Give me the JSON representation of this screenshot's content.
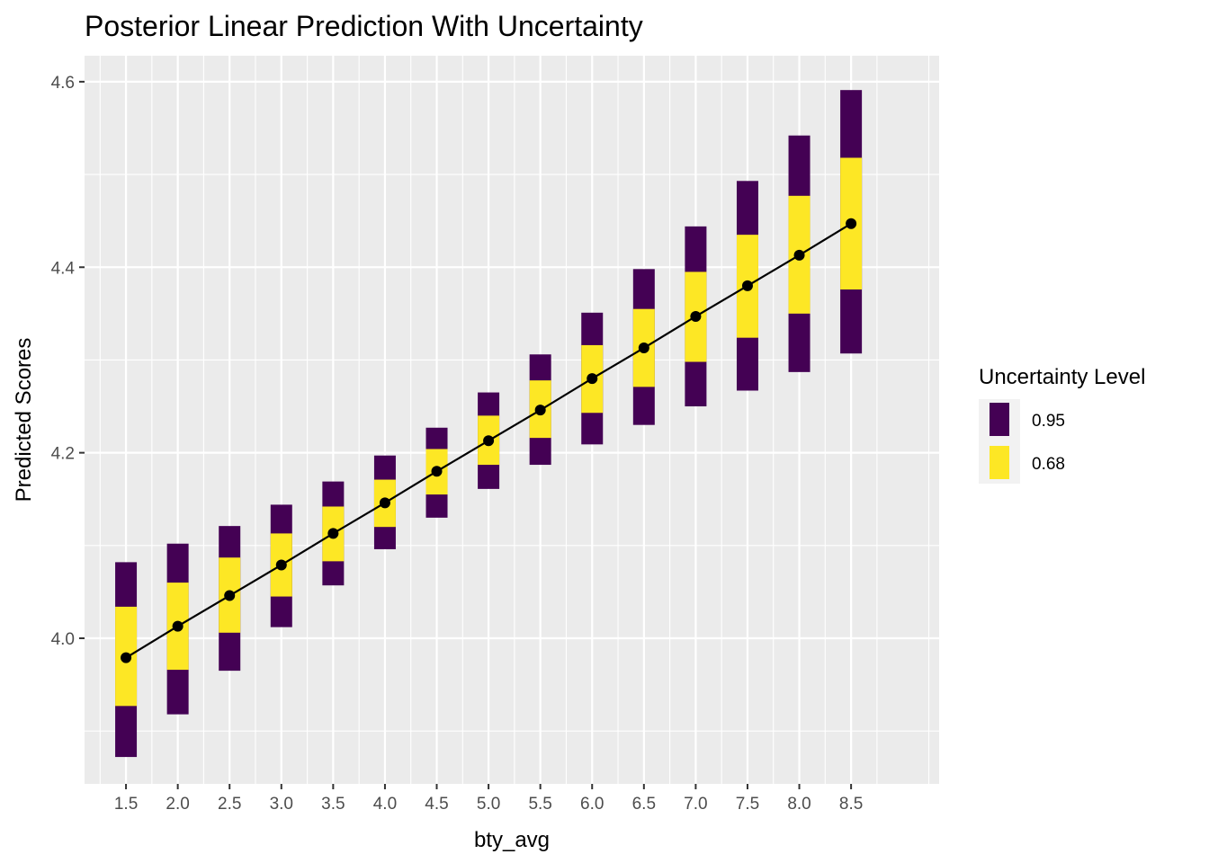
{
  "chart_data": {
    "type": "line",
    "title": "Posterior Linear Prediction With Uncertainty",
    "xlabel": "bty_avg",
    "ylabel": "Predicted Scores",
    "x": [
      1.5,
      2.0,
      2.5,
      3.0,
      3.5,
      4.0,
      4.5,
      5.0,
      5.5,
      6.0,
      6.5,
      7.0,
      7.5,
      8.0,
      8.5
    ],
    "x_tick_labels": [
      "1.5",
      "2.0",
      "2.5",
      "3.0",
      "3.5",
      "4.0",
      "4.5",
      "5.0",
      "5.5",
      "6.0",
      "6.5",
      "7.0",
      "7.5",
      "8.0",
      "8.5"
    ],
    "y_ticks": [
      4.0,
      4.2,
      4.4,
      4.6
    ],
    "y_tick_labels": [
      "4.0",
      "4.2",
      "4.4",
      "4.6"
    ],
    "xlim": [
      1.1,
      9.35
    ],
    "ylim": [
      3.843,
      4.628
    ],
    "grid": true,
    "series": [
      {
        "values": [
          3.979,
          4.013,
          4.046,
          4.079,
          4.113,
          4.146,
          4.18,
          4.213,
          4.246,
          4.28,
          4.313,
          4.347,
          4.38,
          4.413,
          4.447
        ]
      }
    ],
    "intervals": [
      {
        "level": "0.95",
        "color": "#440154",
        "lower": [
          3.872,
          3.918,
          3.965,
          4.012,
          4.057,
          4.096,
          4.13,
          4.161,
          4.187,
          4.209,
          4.23,
          4.25,
          4.267,
          4.287,
          4.307
        ],
        "upper": [
          4.082,
          4.102,
          4.121,
          4.144,
          4.169,
          4.197,
          4.227,
          4.265,
          4.306,
          4.351,
          4.398,
          4.444,
          4.493,
          4.542,
          4.591
        ]
      },
      {
        "level": "0.68",
        "color": "#FDE725",
        "lower": [
          3.927,
          3.966,
          4.006,
          4.045,
          4.083,
          4.12,
          4.155,
          4.187,
          4.216,
          4.243,
          4.271,
          4.298,
          4.324,
          4.35,
          4.376
        ],
        "upper": [
          4.034,
          4.06,
          4.087,
          4.113,
          4.142,
          4.171,
          4.204,
          4.24,
          4.278,
          4.316,
          4.355,
          4.395,
          4.435,
          4.477,
          4.518
        ]
      }
    ],
    "legend": {
      "title": "Uncertainty Level",
      "position": "right",
      "entries": [
        {
          "label": "0.95",
          "color": "#440154"
        },
        {
          "label": "0.68",
          "color": "#FDE725"
        }
      ]
    },
    "panel_color": "#EBEBEB"
  }
}
